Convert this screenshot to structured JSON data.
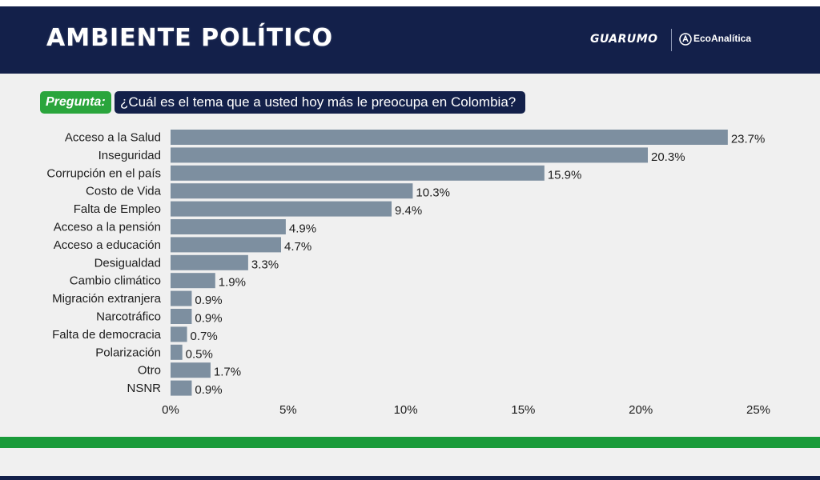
{
  "header": {
    "title": "AMBIENTE POLÍTICO",
    "brand_primary": "GUARUMO",
    "brand_secondary": "EcoAnalítica"
  },
  "question": {
    "label": "Pregunta:",
    "text": "¿Cuál es el tema que a usted hoy más le preocupa en Colombia?"
  },
  "colors": {
    "header_bg": "#13204a",
    "accent_green": "#2aa53c",
    "bar": "#7d8fa0"
  },
  "chart_data": {
    "type": "bar",
    "orientation": "horizontal",
    "categories": [
      "Acceso a la Salud",
      "Inseguridad",
      "Corrupción en el país",
      "Costo de Vida",
      "Falta de Empleo",
      "Acceso a la pensión",
      "Acceso a educación",
      "Desigualdad",
      "Cambio climático",
      "Migración extranjera",
      "Narcotráfico",
      "Falta de democracia",
      "Polarización",
      "Otro",
      "NSNR"
    ],
    "values": [
      23.7,
      20.3,
      15.9,
      10.3,
      9.4,
      4.9,
      4.7,
      3.3,
      1.9,
      0.9,
      0.9,
      0.7,
      0.5,
      1.7,
      0.9
    ],
    "value_labels": [
      "23.7%",
      "20.3%",
      "15.9%",
      "10.3%",
      "9.4%",
      "4.9%",
      "4.7%",
      "3.3%",
      "1.9%",
      "0.9%",
      "0.9%",
      "0.7%",
      "0.5%",
      "1.7%",
      "0.9%"
    ],
    "x_ticks": [
      0,
      5,
      10,
      15,
      20,
      25
    ],
    "x_tick_labels": [
      "0%",
      "5%",
      "10%",
      "15%",
      "20%",
      "25%"
    ],
    "xlim": [
      0,
      25
    ],
    "grid": false,
    "legend": "none"
  }
}
